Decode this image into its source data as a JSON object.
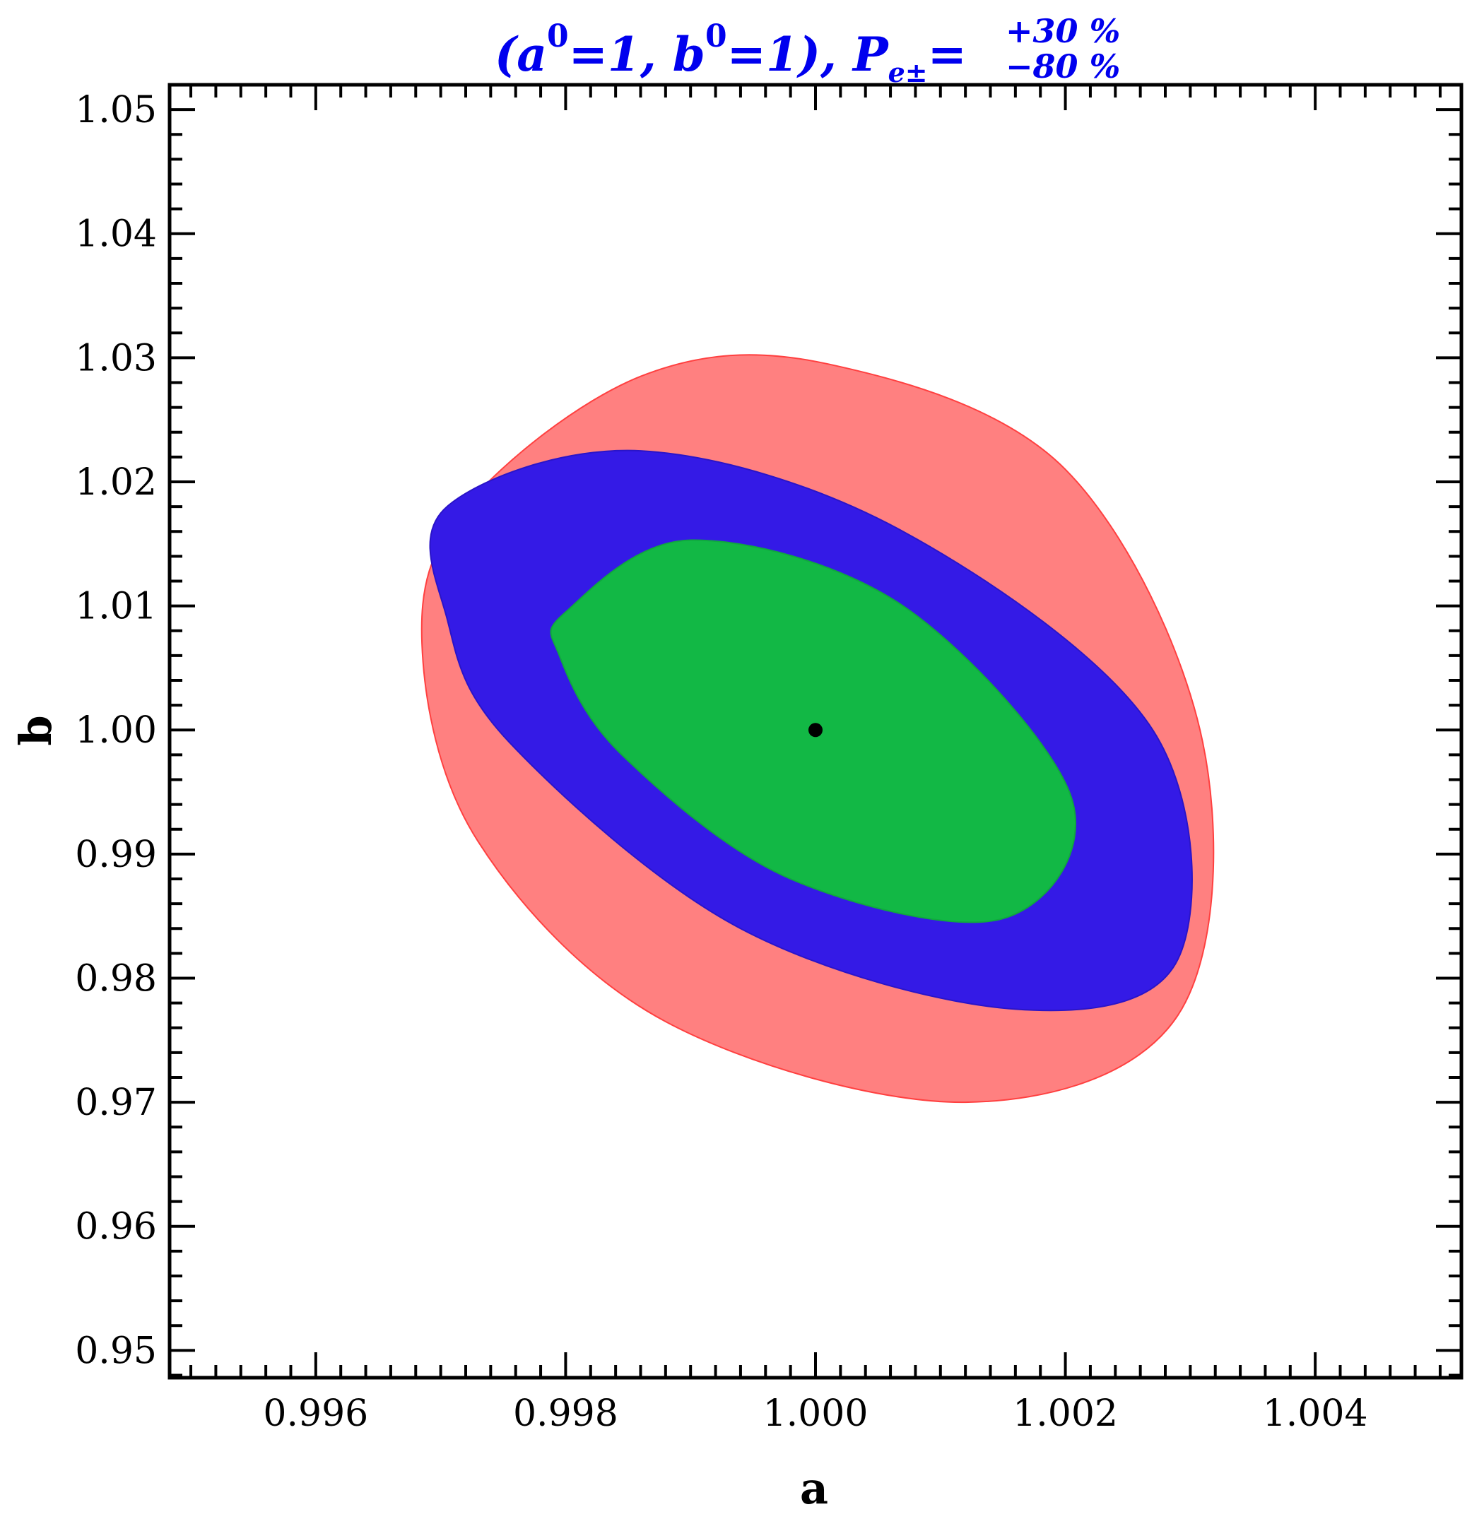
{
  "chart_data": {
    "type": "scatter",
    "title": {
      "prefix": "(a",
      "sup1": "0",
      "mid1": "=1, b",
      "sup2": "0",
      "mid2": "=1),  P",
      "sub": "e±",
      "eq": "=",
      "upper": "+30 %",
      "lower": "−80 %"
    },
    "xlabel": "a",
    "ylabel": "b",
    "xlim": [
      0.99483,
      1.00517
    ],
    "ylim": [
      0.9478,
      1.052
    ],
    "xticks": [
      {
        "value": 0.996,
        "label": "0.996"
      },
      {
        "value": 0.998,
        "label": "0.998"
      },
      {
        "value": 1.0,
        "label": "1.000"
      },
      {
        "value": 1.002,
        "label": "1.002"
      },
      {
        "value": 1.004,
        "label": "1.004"
      }
    ],
    "yticks": [
      {
        "value": 0.95,
        "label": "0.95"
      },
      {
        "value": 0.96,
        "label": "0.96"
      },
      {
        "value": 0.97,
        "label": "0.97"
      },
      {
        "value": 0.98,
        "label": "0.98"
      },
      {
        "value": 0.99,
        "label": "0.99"
      },
      {
        "value": 1.0,
        "label": "1.00"
      },
      {
        "value": 1.01,
        "label": "1.01"
      },
      {
        "value": 1.02,
        "label": "1.02"
      },
      {
        "value": 1.03,
        "label": "1.03"
      },
      {
        "value": 1.04,
        "label": "1.04"
      },
      {
        "value": 1.05,
        "label": "1.05"
      }
    ],
    "x_minor_step": 0.0002,
    "y_minor_step": 0.002,
    "grid": false,
    "regions": [
      {
        "color": "#ff8080",
        "stroke": "#ff4040",
        "points": [
          [
            0.99685,
            1.007
          ],
          [
            0.9972,
            1.018
          ],
          [
            0.9986,
            1.0285
          ],
          [
            1.0001,
            1.0295
          ],
          [
            1.002,
            1.021
          ],
          [
            1.0031,
            0.999
          ],
          [
            1.0029,
            0.977
          ],
          [
            1.0012,
            0.97
          ],
          [
            0.9988,
            0.9765
          ],
          [
            0.9973,
            0.991
          ]
        ]
      },
      {
        "color": "#341ae6",
        "stroke": "#2a14c8",
        "points": [
          [
            0.99705,
            1.018
          ],
          [
            0.9986,
            1.0225
          ],
          [
            1.0007,
            1.016
          ],
          [
            1.0027,
            1.0
          ],
          [
            1.0029,
            0.9815
          ],
          [
            1.0016,
            0.9775
          ],
          [
            0.9994,
            0.984
          ],
          [
            0.99755,
            0.999
          ],
          [
            0.99705,
            1.009
          ]
        ]
      },
      {
        "color": "#12b845",
        "stroke": "#10a83e",
        "points": [
          [
            0.998,
            1.0095
          ],
          [
            0.999,
            1.0153
          ],
          [
            1.0007,
            1.01
          ],
          [
            1.00205,
            0.9945
          ],
          [
            1.0015,
            0.9848
          ],
          [
            0.9998,
            0.988
          ],
          [
            0.99845,
            0.998
          ],
          [
            0.99795,
            1.006
          ]
        ]
      }
    ],
    "points": [
      {
        "x": 1.0,
        "y": 1.0,
        "color": "#000000"
      }
    ],
    "colors": {
      "title": "#0000ee",
      "axis": "#000000"
    }
  }
}
